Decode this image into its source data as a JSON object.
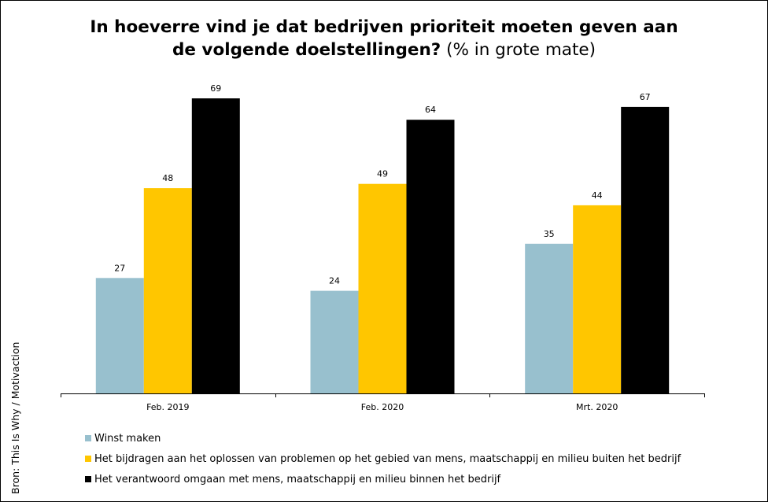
{
  "title": {
    "bold": "In hoeverre vind je dat bedrijven prioriteit moeten geven aan de volgende doelstellingen?",
    "bold_line1": "In hoeverre vind je dat bedrijven prioriteit moeten geven aan",
    "bold_line2": "de volgende doelstellingen?",
    "subtitle": "(% in grote mate)"
  },
  "source": "Bron:  This Is Why / Motivaction",
  "chart_data": {
    "type": "bar",
    "title": "In hoeverre vind je dat bedrijven prioriteit moeten geven aan de volgende doelstellingen? (% in grote mate)",
    "xlabel": "",
    "ylabel": "",
    "categories": [
      "Feb. 2019",
      "Feb. 2020",
      "Mrt. 2020"
    ],
    "series": [
      {
        "name": "Winst maken",
        "color": "#98C0CE",
        "values": [
          27,
          24,
          35
        ]
      },
      {
        "name": "Het bijdragen aan het oplossen van problemen op het gebied van mens, maatschappij en milieu buiten het bedrijf",
        "color": "#FFC600",
        "values": [
          48,
          49,
          44
        ]
      },
      {
        "name": "Het verantwoord omgaan met mens, maatschappij en milieu binnen het bedrijf",
        "color": "#000000",
        "values": [
          69,
          64,
          67
        ]
      }
    ],
    "ylim": [
      0,
      74
    ],
    "grid": false,
    "data_labels": true,
    "legend_position": "bottom-left"
  }
}
